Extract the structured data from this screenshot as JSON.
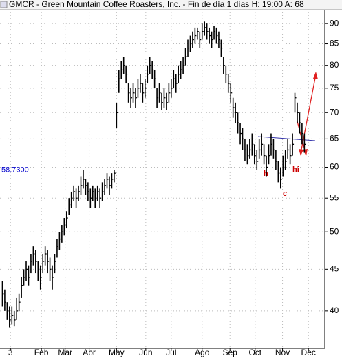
{
  "chart_data": {
    "type": "ohlc",
    "title": "GMCR - Green Mountain Coffee Roasters, Inc.  - Fin de día 1 días H: 19:00 A: 68",
    "color": "#000000",
    "log_scale": true,
    "grid": true,
    "xlim": [
      -1,
      135
    ],
    "xticks": [
      {
        "value": 3.4,
        "label": "3"
      },
      {
        "value": 16.4,
        "label": "Feb"
      },
      {
        "value": 26.4,
        "label": "Mar"
      },
      {
        "value": 36.5,
        "label": "Abr"
      },
      {
        "value": 48,
        "label": "May"
      },
      {
        "value": 60.3,
        "label": "Jun"
      },
      {
        "value": 71,
        "label": "Jul"
      },
      {
        "value": 84,
        "label": "Ago"
      },
      {
        "value": 95.7,
        "label": "Sep"
      },
      {
        "value": 106.3,
        "label": "Oct"
      },
      {
        "value": 117.8,
        "label": "Nov"
      },
      {
        "value": 128.7,
        "label": "Dec"
      }
    ],
    "ylim": [
      36,
      93.6
    ],
    "yticks": [
      40,
      45,
      50,
      55,
      60,
      65,
      70,
      75,
      80,
      85,
      90
    ],
    "hline": {
      "value": 58.73,
      "label": "58.7300",
      "color": "#0000cc"
    },
    "annotations": [
      "h",
      "c",
      "hi"
    ],
    "high": [
      43.5,
      42.5,
      41,
      40.5,
      40.5,
      40,
      41.5,
      42,
      44,
      45,
      46,
      45.5,
      47,
      48,
      47.5,
      46,
      45.5,
      47,
      48,
      47.5,
      46.5,
      45.5,
      47,
      49,
      50,
      51,
      52,
      53,
      55,
      56,
      57,
      56.5,
      57,
      58.5,
      59.5,
      58,
      57.5,
      56.5,
      57,
      56.5,
      57,
      56.5,
      57.5,
      58,
      59,
      58.5,
      59,
      59.5,
      72,
      79,
      81,
      82,
      80,
      76,
      75,
      76,
      75,
      77,
      78,
      76,
      77,
      80,
      82,
      81,
      79,
      75,
      76,
      74,
      75,
      74,
      76,
      77,
      79,
      78,
      80,
      81,
      82,
      84,
      86,
      87,
      88,
      89,
      89,
      88,
      90,
      90.5,
      90,
      89,
      88,
      89.5,
      89,
      88,
      86,
      82,
      80,
      78,
      76,
      73,
      72,
      70,
      68,
      67,
      65,
      64,
      65,
      66,
      64,
      63,
      65,
      66,
      64,
      62,
      64,
      66,
      65,
      63,
      61,
      60,
      62,
      63,
      65,
      64,
      66,
      74,
      72,
      70,
      68,
      66
    ],
    "low": [
      40.5,
      40,
      39,
      38.2,
      38.5,
      38.3,
      39,
      40,
      41.5,
      43,
      43.5,
      43,
      44.5,
      45.5,
      44.5,
      43.5,
      42.5,
      44.5,
      45.5,
      44.5,
      43.5,
      42.5,
      44.5,
      46.5,
      47.5,
      48.5,
      49.5,
      50.5,
      52.5,
      53.5,
      54.5,
      53.5,
      54.5,
      55.5,
      56.5,
      55.5,
      54.5,
      53.5,
      54.5,
      53.5,
      54.5,
      53.5,
      54.5,
      55.5,
      56.5,
      55.5,
      56.5,
      57.5,
      67,
      74,
      77,
      78,
      76,
      72,
      71,
      72,
      71,
      73,
      74,
      72,
      73,
      76,
      78,
      77,
      75,
      71,
      72,
      70.5,
      71,
      70.5,
      72,
      73,
      75,
      74,
      76,
      77,
      78,
      80,
      82,
      83,
      84,
      85,
      86,
      84,
      86,
      87,
      86,
      85,
      84,
      86,
      85,
      84,
      82,
      78,
      76,
      74,
      72,
      69,
      68,
      66,
      64,
      63,
      61,
      60.5,
      61.5,
      62,
      60.5,
      59.5,
      61.5,
      62,
      60.5,
      58.5,
      60.5,
      62,
      61.5,
      59.5,
      57.5,
      56.5,
      58.5,
      59.5,
      61.5,
      60.5,
      62,
      70,
      68,
      66,
      64,
      62.5
    ],
    "close": [
      42,
      41,
      40,
      39,
      39.5,
      39,
      40,
      41,
      43,
      44,
      45,
      44,
      46,
      47,
      46,
      45,
      44,
      46,
      47,
      46,
      45,
      44,
      46,
      48,
      49,
      50,
      51,
      52,
      54,
      55,
      56,
      55,
      56,
      57,
      58,
      57,
      56,
      55,
      56,
      55,
      56,
      55,
      56,
      57,
      58,
      57,
      58,
      59,
      70,
      77,
      79,
      80,
      78,
      74,
      73,
      74,
      73,
      75,
      76,
      74,
      75,
      78,
      80,
      79,
      77,
      73,
      74,
      72,
      73,
      72,
      74,
      75,
      77,
      76,
      78,
      79,
      80,
      82,
      84,
      85,
      86,
      87,
      88,
      86,
      88,
      89,
      88,
      87,
      86,
      88,
      87,
      86,
      84,
      80,
      78,
      76,
      74,
      71,
      70,
      68,
      66,
      65,
      63,
      62,
      63,
      64,
      62,
      61,
      63,
      64,
      62,
      60,
      62,
      64,
      63,
      61,
      59,
      58,
      60,
      61,
      63,
      62,
      64,
      73,
      70,
      68,
      66,
      64
    ]
  }
}
